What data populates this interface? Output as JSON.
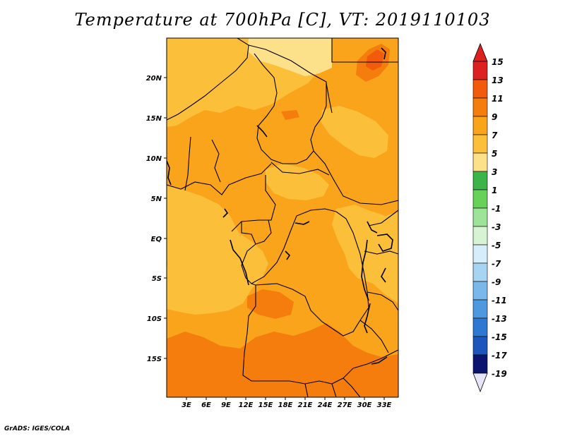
{
  "title": "Temperature at 700hPa [C], VT: 2019110103",
  "credit": "GrADS: IGES/COLA",
  "map": {
    "variable": "Temperature at 700hPa",
    "units": "C",
    "valid_time": "2019110103",
    "lon_labels": [
      "3E",
      "6E",
      "9E",
      "12E",
      "15E",
      "18E",
      "21E",
      "24E",
      "27E",
      "30E",
      "33E"
    ],
    "lat_labels": [
      "20N",
      "15N",
      "10N",
      "5N",
      "EQ",
      "5S",
      "10S",
      "15S"
    ]
  },
  "colorbar": {
    "labels": [
      "15",
      "13",
      "11",
      "9",
      "7",
      "5",
      "3",
      "1",
      "-1",
      "-3",
      "-5",
      "-7",
      "-9",
      "-11",
      "-13",
      "-15",
      "-17",
      "-19"
    ],
    "colors": [
      "#dd2020",
      "#f25a0c",
      "#f57d0d",
      "#f9a41a",
      "#fbbf3a",
      "#fde08a",
      "#3cb44a",
      "#68d15a",
      "#9ee39a",
      "#d8f3d4",
      "#d6eefc",
      "#a8d4f4",
      "#7ab8ec",
      "#4e98e0",
      "#2f78d2",
      "#1e55bd",
      "#12319c",
      "#0b1570"
    ]
  },
  "colors": {
    "background": "#ffffff",
    "temp_9_11": "#f9a41a",
    "temp_7_9": "#fbbf3a",
    "temp_11_13": "#f57d0d",
    "temp_5_7": "#fde08a"
  }
}
